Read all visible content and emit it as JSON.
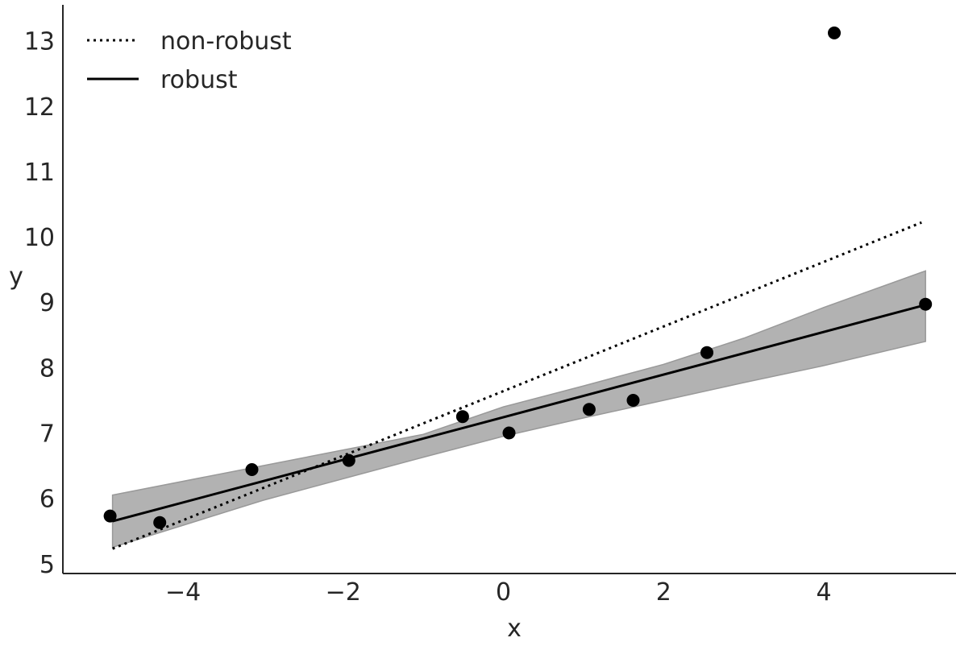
{
  "chart_data": {
    "type": "scatter",
    "xlabel": "x",
    "ylabel": "y",
    "xlim": [
      -5.5,
      5.65
    ],
    "ylim": [
      4.85,
      13.55
    ],
    "xticks": [
      -4,
      -2,
      0,
      2,
      4
    ],
    "xtick_labels": [
      "−4",
      "−2",
      "0",
      "2",
      "4"
    ],
    "yticks": [
      5,
      6,
      7,
      8,
      9,
      10,
      11,
      12,
      13
    ],
    "ytick_labels": [
      "5",
      "6",
      "7",
      "8",
      "9",
      "10",
      "11",
      "12",
      "13"
    ],
    "grid": false,
    "legend_position": "top-left",
    "points": {
      "x": [
        -4.91,
        -4.29,
        -3.14,
        -1.93,
        -0.51,
        0.07,
        1.07,
        1.62,
        2.54,
        4.13,
        5.27
      ],
      "y": [
        5.73,
        5.63,
        6.44,
        6.58,
        7.25,
        7.0,
        7.36,
        7.5,
        8.23,
        13.12,
        8.97
      ],
      "color": "#000000"
    },
    "series": [
      {
        "name": "non-robust",
        "style": "dotted",
        "color": "#000000",
        "x": [
          -4.88,
          5.22
        ],
        "y": [
          5.23,
          10.22
        ]
      },
      {
        "name": "robust",
        "style": "solid",
        "color": "#000000",
        "x": [
          -4.88,
          5.27
        ],
        "y": [
          5.65,
          8.96
        ]
      }
    ],
    "band": {
      "color": "#b2b2b2",
      "edge_color": "#999999",
      "x": [
        -4.88,
        -3.0,
        -1.0,
        0.0,
        1.0,
        2.0,
        3.0,
        4.0,
        5.27
      ],
      "lower": [
        5.25,
        5.97,
        6.63,
        6.95,
        7.23,
        7.5,
        7.77,
        8.03,
        8.4
      ],
      "upper": [
        6.05,
        6.5,
        6.98,
        7.4,
        7.72,
        8.05,
        8.45,
        8.92,
        9.48
      ]
    }
  }
}
